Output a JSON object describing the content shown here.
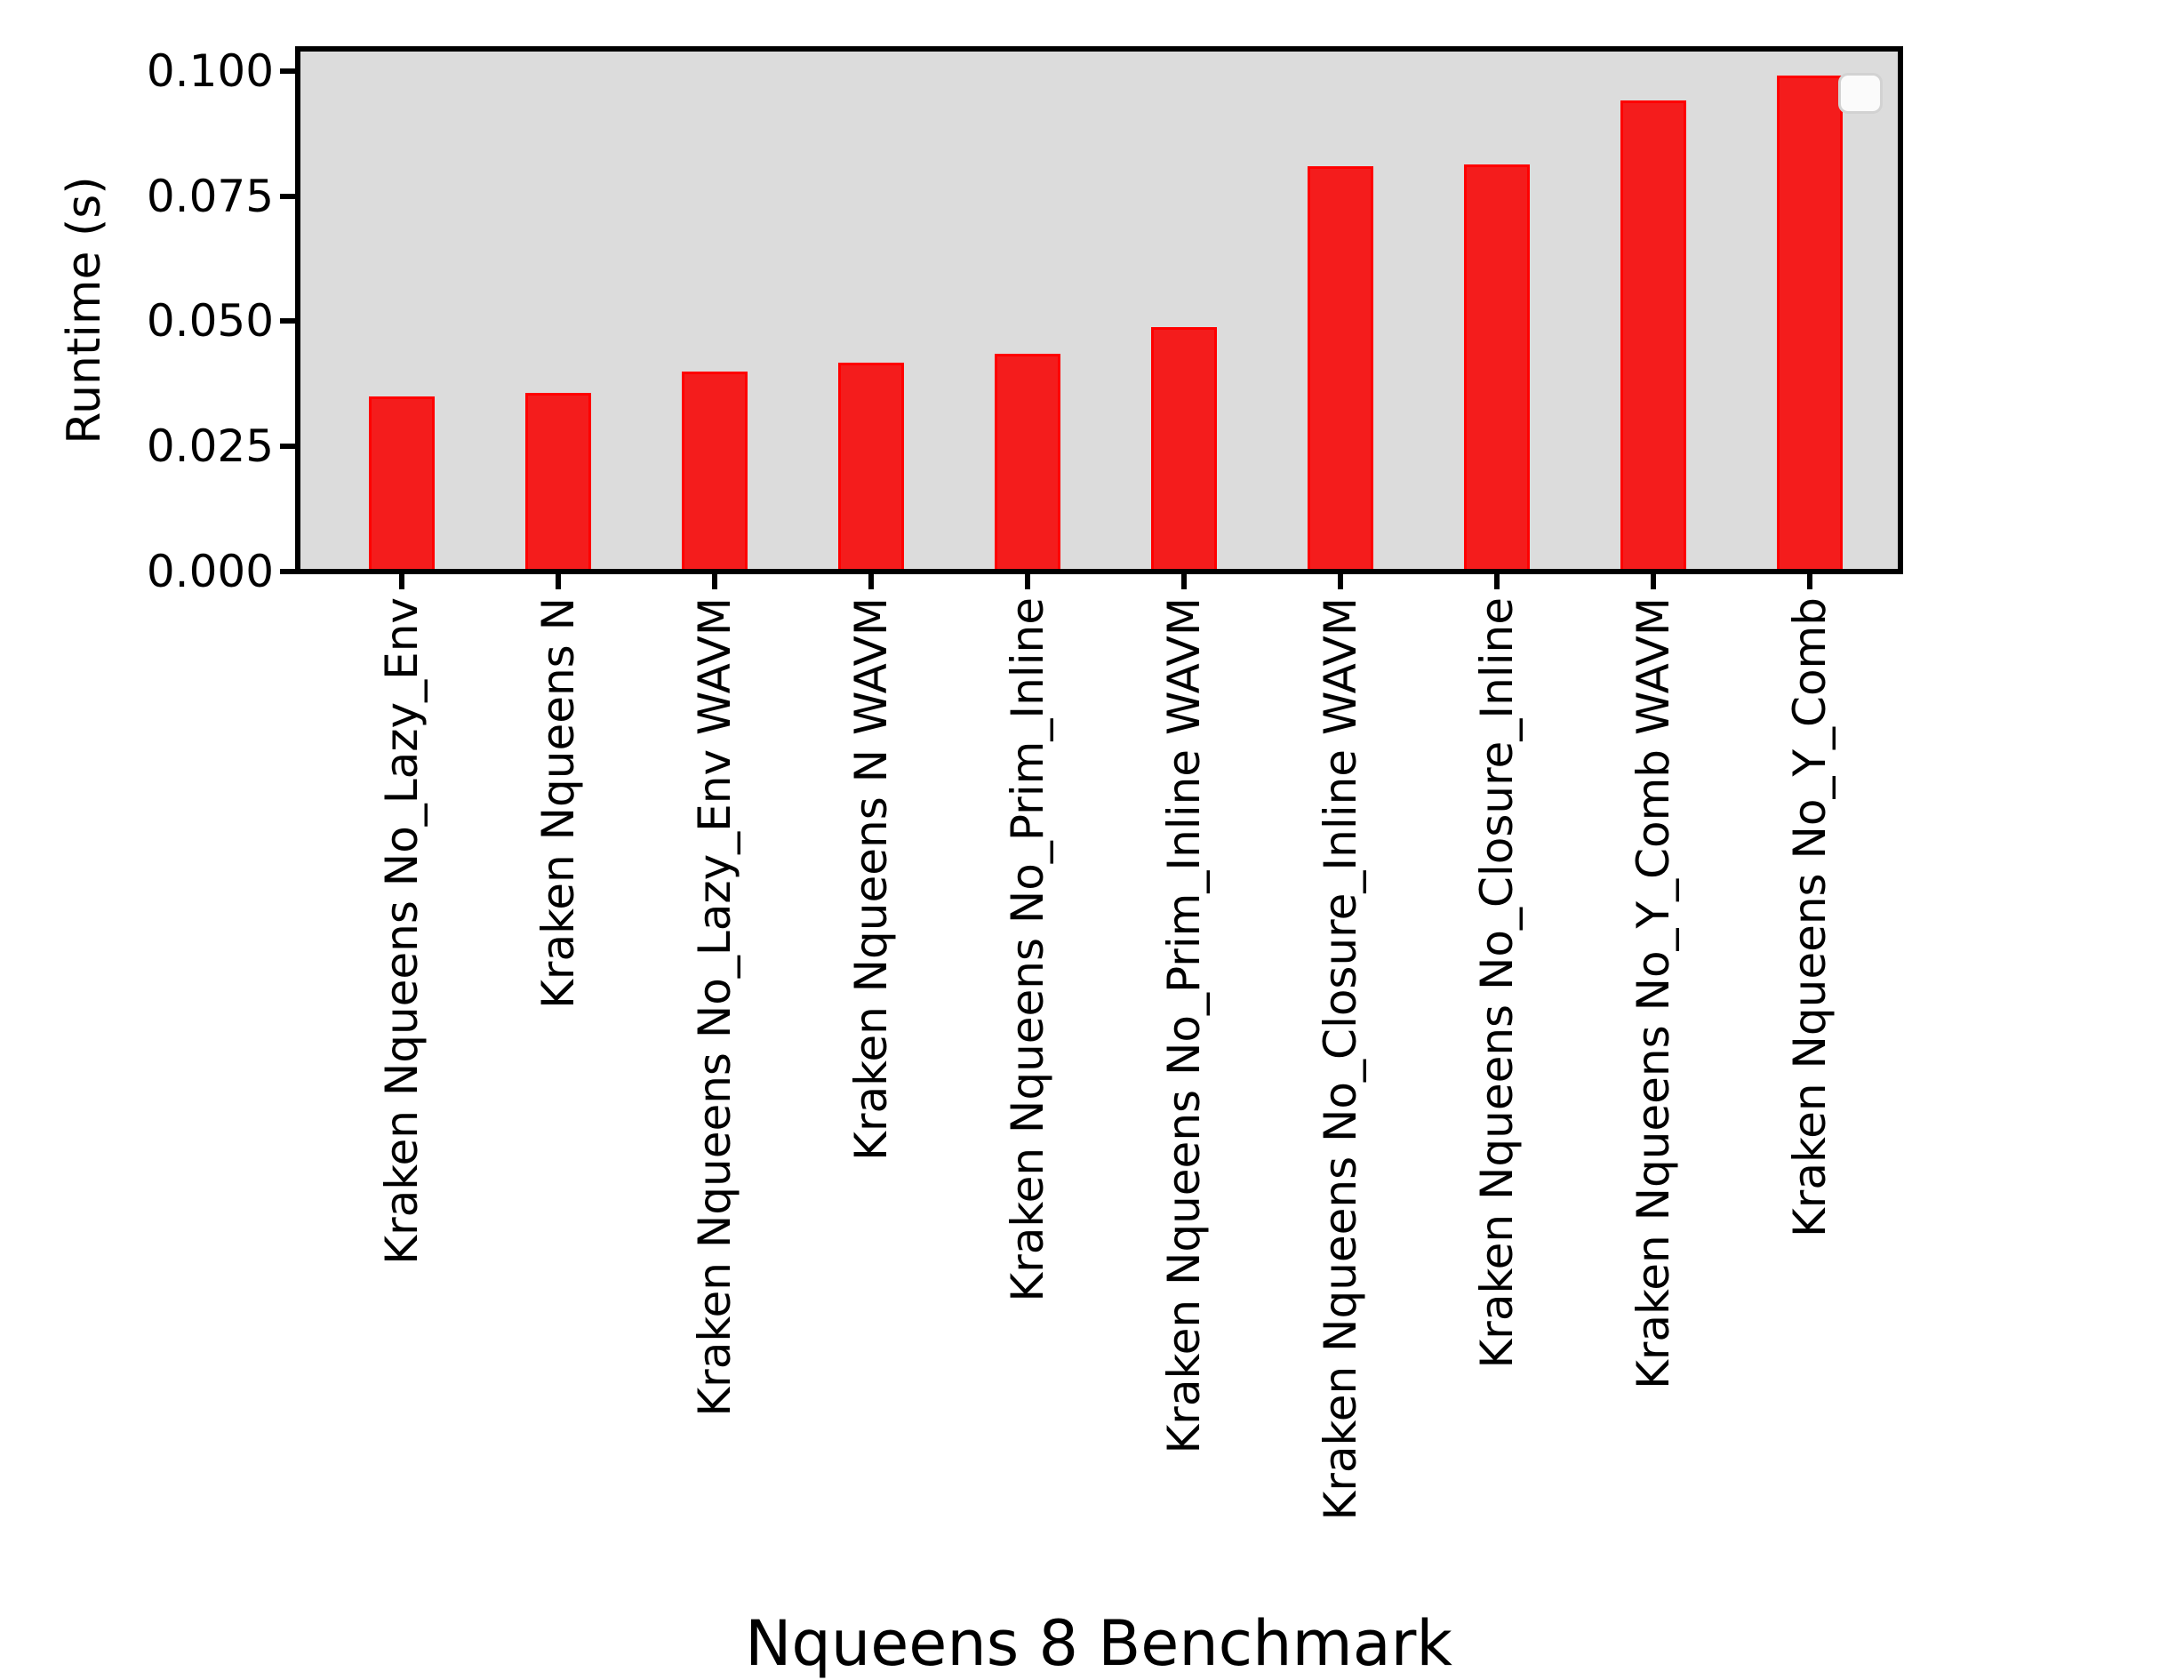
{
  "figure": {
    "background_color": "#ffffff",
    "plot_background_color": "#dcdcdc",
    "bar_fill_color": "#f41c1c",
    "bar_edge_color": "#ff0000",
    "spine_color": "#000000",
    "legend": {
      "visible": true,
      "entries": []
    }
  },
  "chart_data": {
    "type": "bar",
    "title": "",
    "xlabel": "Nqueens 8 Benchmark",
    "ylabel": "Runtime (s)",
    "categories": [
      "Kraken Nqueens No_Lazy_Env",
      "Kraken Nqueens N",
      "Kraken Nqueens No_Lazy_Env WAVM",
      "Kraken Nqueens N WAVM",
      "Kraken Nqueens No_Prim_Inline",
      "Kraken Nqueens No_Prim_Inline WAVM",
      "Kraken Nqueens No_Closure_Inline WAVM",
      "Kraken Nqueens No_Closure_Inline",
      "Kraken Nqueens No_Y_Comb WAVM",
      "Kraken Nqueens No_Y_Comb"
    ],
    "values": [
      0.0349,
      0.0356,
      0.04,
      0.0417,
      0.0435,
      0.0488,
      0.081,
      0.0814,
      0.0941,
      0.099
    ],
    "series_color": "#f41c1c",
    "yticks": [
      0.1,
      0.075,
      0.05,
      0.025,
      0.0
    ],
    "ytick_labels": [
      "0.100",
      "0.075",
      "0.050",
      "0.025",
      "0.000"
    ],
    "ylim": [
      0,
      0.1044
    ],
    "grid": false,
    "legend_position": "upper-right",
    "legend_empty": true,
    "xtick_rotation_deg": 90
  }
}
